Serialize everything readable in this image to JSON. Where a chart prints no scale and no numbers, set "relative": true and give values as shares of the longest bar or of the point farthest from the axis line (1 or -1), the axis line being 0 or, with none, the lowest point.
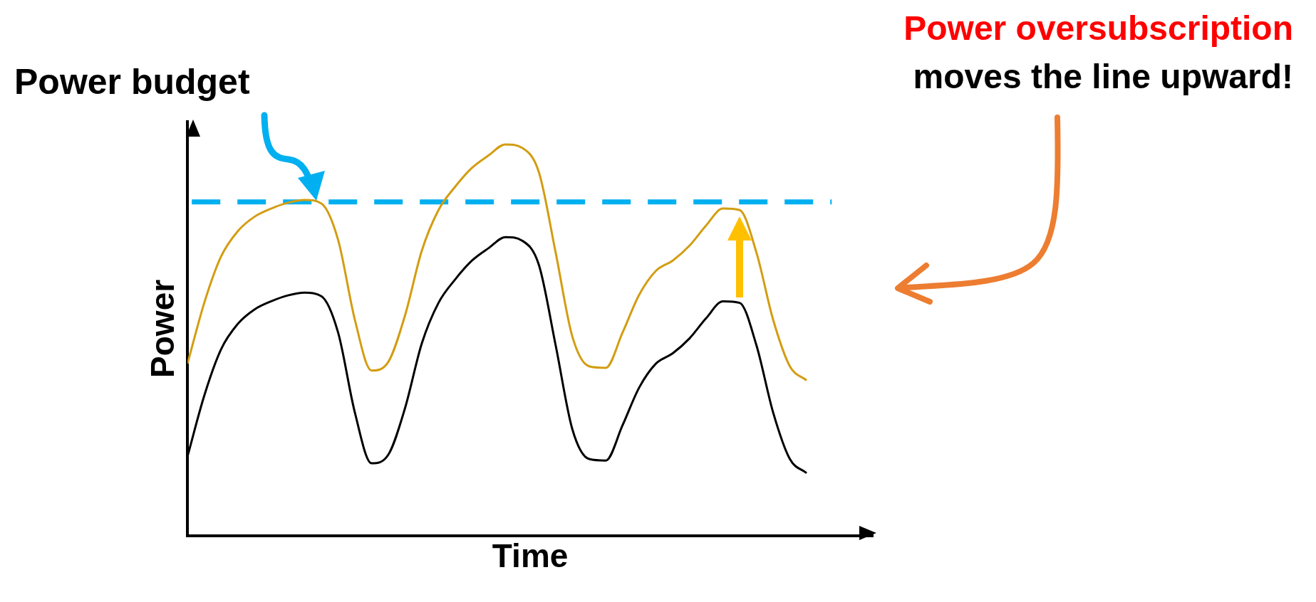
{
  "chart_data": {
    "type": "line",
    "relative": true,
    "xlabel": "Time",
    "ylabel": "Power",
    "categories": [
      null,
      null,
      null,
      null,
      null,
      null,
      null,
      null,
      null,
      null,
      null,
      null,
      null,
      null,
      null,
      null,
      null,
      null,
      null,
      null,
      null,
      null,
      null,
      null,
      null,
      null,
      null,
      null,
      null,
      null,
      null,
      null,
      null,
      null,
      null,
      null,
      null,
      null
    ],
    "series": [
      {
        "color": "#d39d12",
        "values": [
          0.44,
          0.595,
          0.713,
          0.778,
          0.815,
          0.836,
          0.851,
          0.858,
          0.849,
          0.756,
          0.552,
          0.422,
          0.444,
          0.563,
          0.728,
          0.832,
          0.892,
          0.94,
          0.972,
          1.0,
          0.991,
          0.929,
          0.724,
          0.509,
          0.433,
          0.429,
          0.519,
          0.616,
          0.677,
          0.703,
          0.741,
          0.793,
          0.836,
          0.832,
          0.724,
          0.552,
          0.433,
          0.397
        ]
      },
      {
        "color": "#000000",
        "values": [
          0.203,
          0.358,
          0.476,
          0.541,
          0.578,
          0.599,
          0.614,
          0.621,
          0.612,
          0.519,
          0.315,
          0.185,
          0.207,
          0.326,
          0.491,
          0.595,
          0.655,
          0.703,
          0.735,
          0.763,
          0.754,
          0.692,
          0.487,
          0.272,
          0.196,
          0.192,
          0.282,
          0.379,
          0.44,
          0.466,
          0.504,
          0.556,
          0.599,
          0.595,
          0.487,
          0.315,
          0.196,
          0.16
        ]
      }
    ],
    "ref_lines": [
      {
        "axis": "y",
        "value": 0.853,
        "label": "Power budget",
        "color": "#00b0f0",
        "line_style": "dashed"
      }
    ],
    "annotations": [
      "Power oversubscription",
      "moves the line upward!"
    ]
  }
}
